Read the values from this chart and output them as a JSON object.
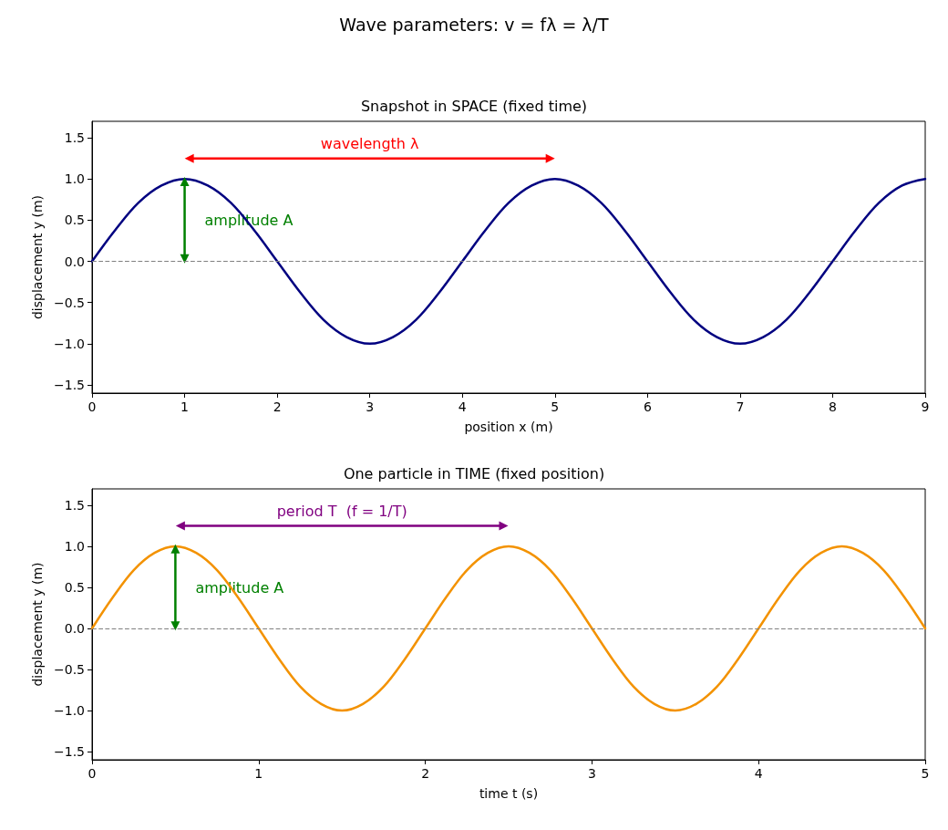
{
  "chart_data": [
    {
      "type": "line",
      "title": "Snapshot in SPACE (fixed time)",
      "xlabel": "position x (m)",
      "ylabel": "displacement y (m)",
      "annotations": [
        "Wave parameters:  v = fλ = λ/T"
      ],
      "marker": "none",
      "grid": false,
      "xlim": [
        0,
        9
      ],
      "xticks": [
        0,
        1,
        2,
        3,
        4,
        5,
        6,
        7,
        8,
        9
      ],
      "ylim": [
        -1.6,
        1.7
      ],
      "yticks": [
        {
          "value": -1.5,
          "label": "−1.5"
        },
        {
          "value": -1,
          "label": "−1.0"
        },
        {
          "value": -0.5,
          "label": "−0.5"
        },
        {
          "value": 0,
          "label": "0.0"
        },
        {
          "value": 0.5,
          "label": "0.5"
        },
        {
          "value": 1,
          "label": "1.0"
        },
        {
          "value": 1.5,
          "label": "1.5"
        }
      ],
      "ref_lines": [
        {
          "axis": "y",
          "value": 0,
          "color": "#808080",
          "line_style": "dashed"
        }
      ],
      "series": [
        {
          "color": "#000080",
          "x": [
            0,
            0.25,
            0.5,
            0.75,
            1,
            1.25,
            1.5,
            1.75,
            2,
            2.25,
            2.5,
            2.75,
            3,
            3.25,
            3.5,
            3.75,
            4,
            4.25,
            4.5,
            4.75,
            5,
            5.25,
            5.5,
            5.75,
            6,
            6.25,
            6.5,
            6.75,
            7,
            7.25,
            7.5,
            7.75,
            8,
            8.25,
            8.5,
            8.75,
            9
          ],
          "values": [
            0,
            0.38,
            0.71,
            0.92,
            1,
            0.92,
            0.71,
            0.38,
            0,
            -0.38,
            -0.71,
            -0.92,
            -1,
            -0.92,
            -0.71,
            -0.38,
            0,
            0.38,
            0.71,
            0.92,
            1,
            0.92,
            0.71,
            0.38,
            0,
            -0.38,
            -0.71,
            -0.92,
            -1,
            -0.92,
            -0.71,
            -0.38,
            0,
            0.38,
            0.71,
            0.92,
            1
          ]
        },
        {
          "name": "wavelength λ",
          "color": "#ff0000",
          "marker": "triangle",
          "x": [
            1.05,
            4.95
          ],
          "values": [
            1.25,
            1.25
          ]
        },
        {
          "name": "amplitude A",
          "color": "#008000",
          "marker": "triangle",
          "x": [
            1,
            1
          ],
          "values": [
            0.03,
            0.97
          ]
        }
      ]
    },
    {
      "type": "line",
      "title": "One particle in TIME (fixed position)",
      "xlabel": "time t (s)",
      "ylabel": "displacement y (m)",
      "marker": "none",
      "grid": false,
      "xlim": [
        0,
        5
      ],
      "xticks": [
        0,
        1,
        2,
        3,
        4,
        5
      ],
      "ylim": [
        -1.6,
        1.7
      ],
      "yticks": [
        {
          "value": -1.5,
          "label": "−1.5"
        },
        {
          "value": -1,
          "label": "−1.0"
        },
        {
          "value": -0.5,
          "label": "−0.5"
        },
        {
          "value": 0,
          "label": "0.0"
        },
        {
          "value": 0.5,
          "label": "0.5"
        },
        {
          "value": 1,
          "label": "1.0"
        },
        {
          "value": 1.5,
          "label": "1.5"
        }
      ],
      "ref_lines": [
        {
          "axis": "y",
          "value": 0,
          "color": "#808080",
          "line_style": "dashed"
        }
      ],
      "series": [
        {
          "color": "#f39200",
          "x": [
            0,
            0.125,
            0.25,
            0.375,
            0.5,
            0.625,
            0.75,
            0.875,
            1,
            1.125,
            1.25,
            1.375,
            1.5,
            1.625,
            1.75,
            1.875,
            2,
            2.125,
            2.25,
            2.375,
            2.5,
            2.625,
            2.75,
            2.875,
            3,
            3.125,
            3.25,
            3.375,
            3.5,
            3.625,
            3.75,
            3.875,
            4,
            4.125,
            4.25,
            4.375,
            4.5,
            4.625,
            4.75,
            4.875,
            5
          ],
          "values": [
            0,
            0.38,
            0.71,
            0.92,
            1,
            0.92,
            0.71,
            0.38,
            0,
            -0.38,
            -0.71,
            -0.92,
            -1,
            -0.92,
            -0.71,
            -0.38,
            0,
            0.38,
            0.71,
            0.92,
            1,
            0.92,
            0.71,
            0.38,
            0,
            -0.38,
            -0.71,
            -0.92,
            -1,
            -0.92,
            -0.71,
            -0.38,
            0,
            0.38,
            0.71,
            0.92,
            1,
            0.92,
            0.71,
            0.38,
            0
          ]
        },
        {
          "name": "period T  (f = 1/T)",
          "color": "#800080",
          "marker": "triangle",
          "x": [
            0.53,
            2.47
          ],
          "values": [
            1.25,
            1.25
          ]
        },
        {
          "name": "amplitude A",
          "color": "#008000",
          "marker": "triangle",
          "x": [
            0.5,
            0.5
          ],
          "values": [
            0.03,
            0.97
          ]
        }
      ]
    }
  ]
}
